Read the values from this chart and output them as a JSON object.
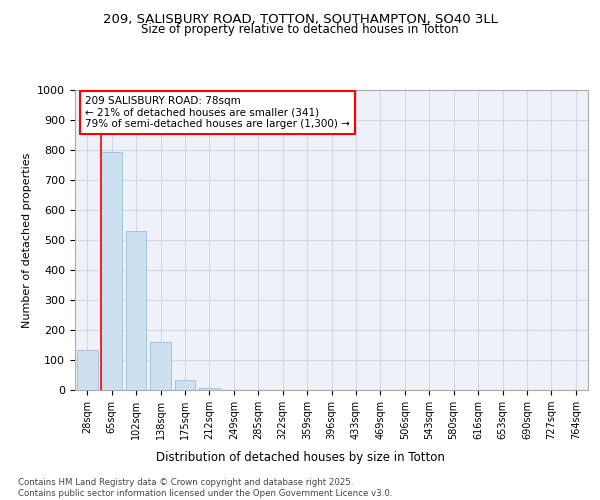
{
  "title": "209, SALISBURY ROAD, TOTTON, SOUTHAMPTON, SO40 3LL",
  "subtitle": "Size of property relative to detached houses in Totton",
  "xlabel": "Distribution of detached houses by size in Totton",
  "ylabel": "Number of detached properties",
  "categories": [
    "28sqm",
    "65sqm",
    "102sqm",
    "138sqm",
    "175sqm",
    "212sqm",
    "249sqm",
    "285sqm",
    "322sqm",
    "359sqm",
    "396sqm",
    "433sqm",
    "469sqm",
    "506sqm",
    "543sqm",
    "580sqm",
    "616sqm",
    "653sqm",
    "690sqm",
    "727sqm",
    "764sqm"
  ],
  "values": [
    135,
    795,
    530,
    160,
    33,
    8,
    0,
    0,
    0,
    0,
    0,
    0,
    0,
    0,
    0,
    0,
    0,
    0,
    0,
    0,
    0
  ],
  "bar_color": "#cce0f0",
  "bar_edge_color": "#a0c4e0",
  "grid_color": "#d0d8e8",
  "bg_color": "#eef2f8",
  "red_line_x": 1,
  "annotation_text": "209 SALISBURY ROAD: 78sqm\n← 21% of detached houses are smaller (341)\n79% of semi-detached houses are larger (1,300) →",
  "ylim": [
    0,
    1000
  ],
  "yticks": [
    0,
    100,
    200,
    300,
    400,
    500,
    600,
    700,
    800,
    900,
    1000
  ],
  "footer_line1": "Contains HM Land Registry data © Crown copyright and database right 2025.",
  "footer_line2": "Contains public sector information licensed under the Open Government Licence v3.0."
}
